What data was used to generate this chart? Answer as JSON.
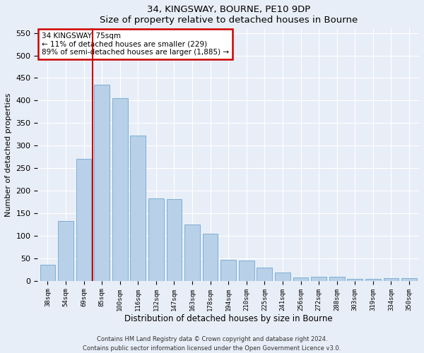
{
  "title1": "34, KINGSWAY, BOURNE, PE10 9DP",
  "title2": "Size of property relative to detached houses in Bourne",
  "xlabel": "Distribution of detached houses by size in Bourne",
  "ylabel": "Number of detached properties",
  "categories": [
    "38sqm",
    "54sqm",
    "69sqm",
    "85sqm",
    "100sqm",
    "116sqm",
    "132sqm",
    "147sqm",
    "163sqm",
    "178sqm",
    "194sqm",
    "210sqm",
    "225sqm",
    "241sqm",
    "256sqm",
    "272sqm",
    "288sqm",
    "303sqm",
    "319sqm",
    "334sqm",
    "350sqm"
  ],
  "values": [
    35,
    133,
    270,
    435,
    405,
    322,
    182,
    181,
    125,
    104,
    46,
    45,
    29,
    18,
    7,
    8,
    8,
    4,
    4,
    5,
    5
  ],
  "bar_color": "#b8d0e8",
  "bar_edge_color": "#6fa8d0",
  "vline_x": 2.5,
  "vline_color": "#cc0000",
  "annotation_text": "34 KINGSWAY: 75sqm\n← 11% of detached houses are smaller (229)\n89% of semi-detached houses are larger (1,885) →",
  "annotation_box_color": "#ffffff",
  "annotation_box_edge": "#cc0000",
  "ylim": [
    0,
    560
  ],
  "yticks": [
    0,
    50,
    100,
    150,
    200,
    250,
    300,
    350,
    400,
    450,
    500,
    550
  ],
  "footer1": "Contains HM Land Registry data © Crown copyright and database right 2024.",
  "footer2": "Contains public sector information licensed under the Open Government Licence v3.0.",
  "bg_color": "#e8eef7",
  "plot_bg_color": "#e8eef7"
}
